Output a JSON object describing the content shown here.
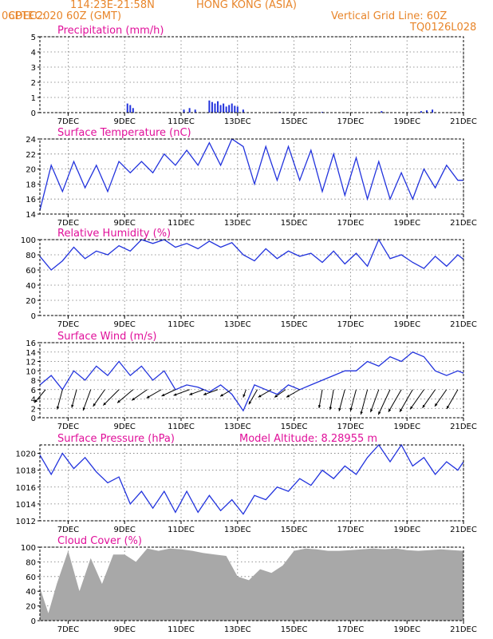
{
  "header": {
    "source": "CPTEC:",
    "coords": "114:23E-21:58N",
    "location": "HONG KONG (ASIA)",
    "run": "06DEC2020 60Z (GMT)",
    "grid_note": "Vertical Grid Line: 60Z",
    "station": "TQ0126L028"
  },
  "colors": {
    "header": "#e8852a",
    "title": "#e0109a",
    "series": "#2233dd",
    "cloud": "#a8a8a8"
  },
  "time_axis": {
    "start_day": 6.0,
    "end_day": 21.0,
    "tick_days": [
      7,
      9,
      11,
      13,
      15,
      17,
      19,
      21
    ],
    "tick_labels": [
      "7DEC",
      "9DEC",
      "11DEC",
      "13DEC",
      "15DEC",
      "17DEC",
      "19DEC",
      "21DEC"
    ]
  },
  "chart_data": [
    {
      "type": "bar",
      "title": "Precipitation (mm/h)",
      "ylim": [
        0,
        5
      ],
      "yticks": [
        0,
        1,
        2,
        3,
        4,
        5
      ],
      "x": [
        9.1,
        9.2,
        9.3,
        11.1,
        11.3,
        11.5,
        12.0,
        12.1,
        12.2,
        12.3,
        12.4,
        12.5,
        12.6,
        12.7,
        12.8,
        12.9,
        13.0,
        13.2,
        14.5,
        16.0,
        18.1,
        19.5,
        19.7,
        19.9
      ],
      "values": [
        0.6,
        0.5,
        0.3,
        0.2,
        0.3,
        0.2,
        0.8,
        0.7,
        0.6,
        0.75,
        0.5,
        0.6,
        0.4,
        0.5,
        0.6,
        0.45,
        0.4,
        0.2,
        0.05,
        0.05,
        0.1,
        0.1,
        0.15,
        0.2
      ]
    },
    {
      "type": "line",
      "title": "Surface Temperature (nC)",
      "ylim": [
        14,
        24
      ],
      "yticks": [
        14,
        16,
        18,
        20,
        22,
        24
      ],
      "x": [
        6.0,
        6.4,
        6.8,
        7.2,
        7.6,
        8.0,
        8.4,
        8.8,
        9.2,
        9.6,
        10.0,
        10.4,
        10.8,
        11.2,
        11.6,
        12.0,
        12.4,
        12.8,
        13.2,
        13.6,
        14.0,
        14.4,
        14.8,
        15.2,
        15.6,
        16.0,
        16.4,
        16.8,
        17.2,
        17.6,
        18.0,
        18.4,
        18.8,
        19.2,
        19.6,
        20.0,
        20.4,
        20.8,
        21.0
      ],
      "y": [
        14.5,
        20.5,
        17.0,
        21.0,
        17.5,
        20.5,
        17.0,
        21.0,
        19.5,
        21.0,
        19.5,
        22.0,
        20.5,
        22.5,
        20.5,
        23.5,
        20.5,
        24.0,
        23.0,
        18.0,
        23.0,
        18.5,
        23.0,
        18.5,
        22.5,
        17.0,
        22.0,
        16.5,
        21.5,
        16.0,
        21.0,
        16.0,
        19.5,
        16.0,
        20.0,
        17.5,
        20.5,
        18.5,
        18.5
      ]
    },
    {
      "type": "line",
      "title": "Relative Humidity (%)",
      "ylim": [
        0,
        100
      ],
      "yticks": [
        0,
        20,
        40,
        60,
        80,
        100
      ],
      "x": [
        6.0,
        6.4,
        6.8,
        7.2,
        7.6,
        8.0,
        8.4,
        8.8,
        9.2,
        9.6,
        10.0,
        10.4,
        10.8,
        11.2,
        11.6,
        12.0,
        12.4,
        12.8,
        13.2,
        13.6,
        14.0,
        14.4,
        14.8,
        15.2,
        15.6,
        16.0,
        16.4,
        16.8,
        17.2,
        17.6,
        18.0,
        18.4,
        18.8,
        19.2,
        19.6,
        20.0,
        20.4,
        20.8,
        21.0
      ],
      "y": [
        78,
        60,
        72,
        90,
        75,
        85,
        80,
        92,
        85,
        100,
        95,
        100,
        90,
        95,
        88,
        98,
        90,
        96,
        80,
        72,
        88,
        75,
        85,
        78,
        82,
        70,
        85,
        68,
        82,
        65,
        100,
        75,
        80,
        70,
        62,
        78,
        65,
        80,
        74
      ]
    },
    {
      "type": "line",
      "title": "Surface Wind (m/s)",
      "ylim": [
        0,
        16
      ],
      "yticks": [
        0,
        2,
        4,
        6,
        8,
        10,
        12,
        14,
        16
      ],
      "x": [
        6.0,
        6.4,
        6.8,
        7.2,
        7.6,
        8.0,
        8.4,
        8.8,
        9.2,
        9.6,
        10.0,
        10.4,
        10.8,
        11.2,
        11.6,
        12.0,
        12.4,
        12.8,
        13.2,
        13.6,
        14.0,
        14.4,
        14.8,
        15.2,
        15.6,
        16.0,
        16.4,
        16.8,
        17.2,
        17.6,
        18.0,
        18.4,
        18.8,
        19.2,
        19.6,
        20.0,
        20.4,
        20.8,
        21.0
      ],
      "y": [
        7,
        9,
        6,
        10,
        8,
        11,
        9,
        12,
        9,
        11,
        8,
        10,
        6,
        7,
        6.5,
        5.5,
        7,
        5,
        1.5,
        7,
        6,
        5,
        7,
        6,
        7,
        8,
        9,
        10,
        10,
        12,
        11,
        13,
        12,
        14,
        13,
        10,
        9,
        10,
        9.5
      ],
      "wind_barbs": {
        "x": [
          6.2,
          6.8,
          7.3,
          7.8,
          8.3,
          8.8,
          9.3,
          9.8,
          10.3,
          10.8,
          11.3,
          11.8,
          12.3,
          12.8,
          13.3,
          13.7,
          14.2,
          14.7,
          15.2,
          16.0,
          16.4,
          16.8,
          17.2,
          17.6,
          18.0,
          18.4,
          18.8,
          19.2,
          19.6,
          20.0,
          20.4,
          20.8
        ],
        "speed": [
          7,
          9,
          8,
          10,
          9,
          10,
          9,
          8,
          7,
          6,
          7,
          6,
          6,
          5,
          2,
          7,
          6,
          5,
          6,
          8,
          9,
          10,
          10,
          12,
          11,
          13,
          12,
          12,
          11,
          10,
          9,
          10
        ],
        "dir_deg": [
          40,
          15,
          15,
          20,
          35,
          45,
          50,
          55,
          60,
          65,
          70,
          70,
          70,
          60,
          20,
          30,
          60,
          55,
          60,
          10,
          10,
          15,
          15,
          15,
          20,
          25,
          30,
          30,
          35,
          35,
          35,
          30
        ]
      }
    },
    {
      "type": "line",
      "title": "Surface Pressure (hPa)",
      "annotation": "Model Altitude: 8.28955 m",
      "ylim": [
        1012,
        1021
      ],
      "yticks": [
        1012,
        1014,
        1016,
        1018,
        1020
      ],
      "x": [
        6.0,
        6.4,
        6.8,
        7.2,
        7.6,
        8.0,
        8.4,
        8.8,
        9.2,
        9.6,
        10.0,
        10.4,
        10.8,
        11.2,
        11.6,
        12.0,
        12.4,
        12.8,
        13.2,
        13.6,
        14.0,
        14.4,
        14.8,
        15.2,
        15.6,
        16.0,
        16.4,
        16.8,
        17.2,
        17.6,
        18.0,
        18.4,
        18.8,
        19.2,
        19.6,
        20.0,
        20.4,
        20.8,
        21.0
      ],
      "y": [
        1019.8,
        1017.5,
        1020.0,
        1018.2,
        1019.5,
        1017.8,
        1016.5,
        1017.2,
        1014.0,
        1015.5,
        1013.5,
        1015.5,
        1013.0,
        1015.5,
        1013.0,
        1015.0,
        1013.2,
        1014.5,
        1012.8,
        1015.0,
        1014.5,
        1016.0,
        1015.5,
        1017.0,
        1016.2,
        1018.0,
        1017.0,
        1018.5,
        1017.5,
        1019.5,
        1021.0,
        1019.0,
        1021.0,
        1018.5,
        1019.5,
        1017.5,
        1019.0,
        1018.0,
        1019.0
      ]
    },
    {
      "type": "area",
      "title": "Cloud Cover (%)",
      "ylim": [
        0,
        100
      ],
      "yticks": [
        0,
        20,
        40,
        60,
        80,
        100
      ],
      "x": [
        6.0,
        6.3,
        6.6,
        7.0,
        7.4,
        7.8,
        8.2,
        8.6,
        9.0,
        9.4,
        9.8,
        10.2,
        10.6,
        11.0,
        11.4,
        11.8,
        12.2,
        12.6,
        13.0,
        13.4,
        13.8,
        14.2,
        14.6,
        15.0,
        15.4,
        15.8,
        16.2,
        16.6,
        17.0,
        17.4,
        17.8,
        18.2,
        18.6,
        19.0,
        19.4,
        19.8,
        20.2,
        20.6,
        21.0
      ],
      "y": [
        45,
        10,
        50,
        95,
        40,
        85,
        50,
        90,
        90,
        80,
        98,
        95,
        98,
        97,
        95,
        92,
        90,
        88,
        60,
        55,
        70,
        65,
        75,
        95,
        98,
        97,
        95,
        95,
        96,
        97,
        98,
        97,
        98,
        96,
        95,
        96,
        97,
        96,
        95
      ]
    }
  ]
}
